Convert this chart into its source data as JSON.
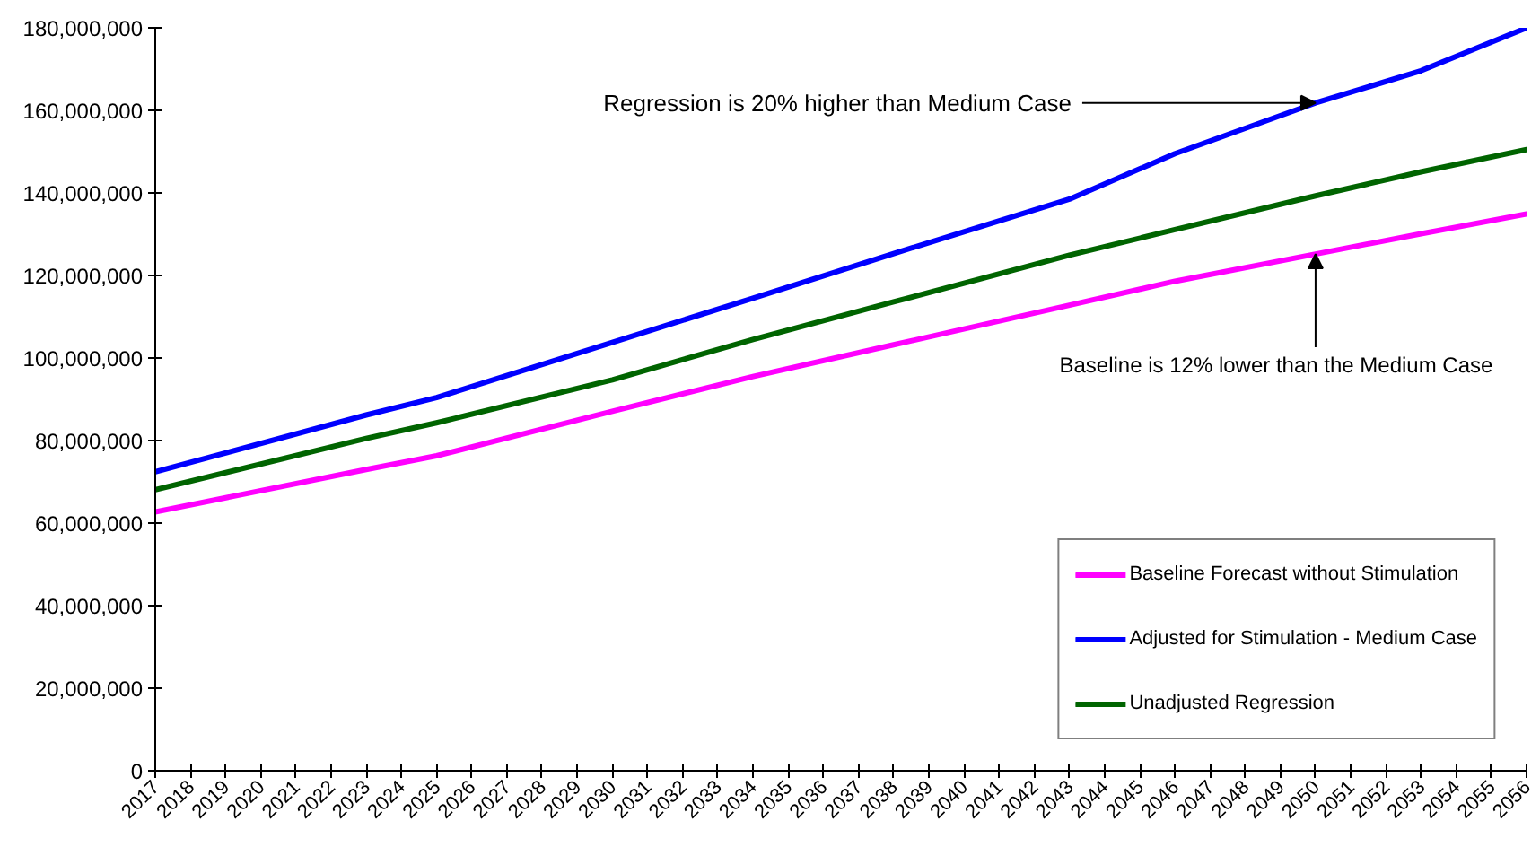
{
  "chart_data": {
    "type": "line",
    "x": [
      2017,
      2023,
      2025,
      2030,
      2034,
      2038,
      2043,
      2046,
      2050,
      2053,
      2056
    ],
    "series": [
      {
        "name": "Baseline Forecast without Stimulation",
        "color": "#ff00ff",
        "values": [
          62700000,
          73000000,
          76300000,
          87100000,
          95500000,
          103200000,
          112800000,
          118600000,
          125200000,
          130100000,
          134900000
        ]
      },
      {
        "name": "Adjusted for Stimulation - Medium Case",
        "color": "#0000ff",
        "values": [
          72400000,
          86200000,
          90400000,
          103800000,
          114500000,
          125300000,
          138500000,
          149500000,
          161800000,
          169600000,
          180000000
        ]
      },
      {
        "name": "Unadjusted Regression",
        "color": "#006400",
        "values": [
          68100000,
          80500000,
          84300000,
          94700000,
          104500000,
          113600000,
          124900000,
          131100000,
          139300000,
          145100000,
          150500000
        ]
      }
    ],
    "xlim": [
      2017,
      2056
    ],
    "xticks": [
      2017,
      2018,
      2019,
      2020,
      2021,
      2022,
      2023,
      2024,
      2025,
      2026,
      2027,
      2028,
      2029,
      2030,
      2031,
      2032,
      2033,
      2034,
      2035,
      2036,
      2037,
      2038,
      2039,
      2040,
      2041,
      2042,
      2043,
      2044,
      2045,
      2046,
      2047,
      2048,
      2049,
      2050,
      2051,
      2052,
      2053,
      2054,
      2055,
      2056
    ],
    "ylim": [
      0,
      180000000
    ],
    "yticks": [
      0,
      {
        "value": 20000000,
        "label": "20,000,000"
      },
      {
        "value": 40000000,
        "label": "40,000,000"
      },
      {
        "value": 60000000,
        "label": "60,000,000"
      },
      {
        "value": 80000000,
        "label": "80,000,000"
      },
      {
        "value": 100000000,
        "label": "100,000,000"
      },
      {
        "value": 120000000,
        "label": "120,000,000"
      },
      {
        "value": 140000000,
        "label": "140,000,000"
      },
      {
        "value": 160000000,
        "label": "160,000,000"
      },
      {
        "value": 180000000,
        "label": "180,000,000"
      }
    ],
    "annotations": [
      {
        "text": "Regression is 20% higher than Medium Case",
        "x": 2050,
        "y": 161800000
      },
      {
        "text": "Baseline is 12% lower than the Medium Case",
        "x": 2050,
        "y": 125200000
      }
    ],
    "grid": false,
    "legend": "bottom right"
  }
}
